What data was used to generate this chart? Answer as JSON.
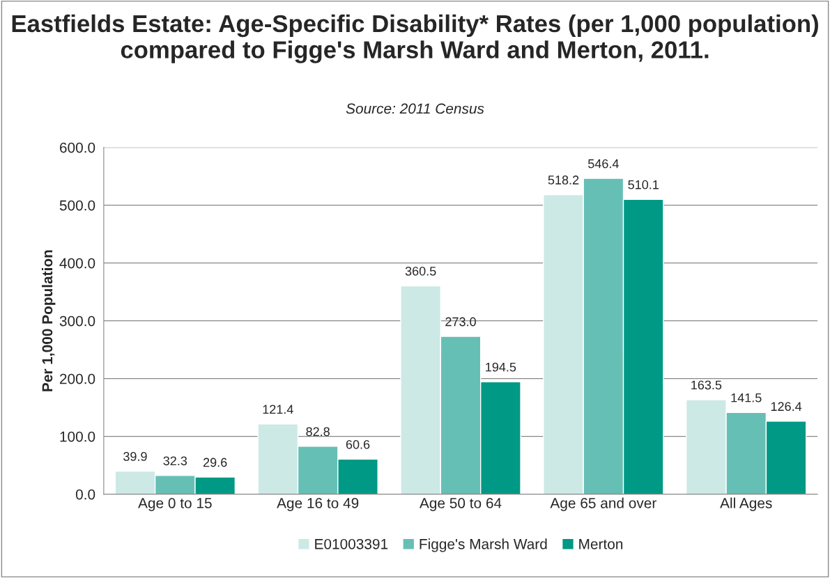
{
  "chart_data": {
    "type": "bar",
    "title": "Eastfields Estate: Age-Specific Disability* Rates (per 1,000 population) compared to Figge's Marsh Ward and Merton, 2011.",
    "subtitle": "Source: 2011 Census",
    "ylabel": "Per 1,000 Population",
    "categories": [
      "Age 0 to 15",
      "Age 16 to 49",
      "Age 50 to 64",
      "Age 65 and over",
      "All Ages"
    ],
    "series": [
      {
        "name": "E01003391",
        "color": "#cce9e6",
        "values": [
          39.9,
          121.4,
          360.5,
          518.2,
          163.5
        ],
        "value_labels": [
          "39.9",
          "121.4",
          "360.5",
          "518.2",
          "163.5"
        ]
      },
      {
        "name": "Figge's Marsh Ward",
        "color": "#66bfb5",
        "values": [
          32.3,
          82.8,
          273.0,
          546.4,
          141.5
        ],
        "value_labels": [
          "32.3",
          "82.8",
          "273.0",
          "546.4",
          "141.5"
        ]
      },
      {
        "name": "Merton",
        "color": "#009985",
        "values": [
          29.6,
          60.6,
          194.5,
          510.1,
          126.4
        ],
        "value_labels": [
          "29.6",
          "60.6",
          "194.5",
          "510.1",
          "126.4"
        ]
      }
    ],
    "ylim": [
      0,
      600
    ],
    "yticks": [
      {
        "value": 0,
        "label": "0.0"
      },
      {
        "value": 100,
        "label": "100.0"
      },
      {
        "value": 200,
        "label": "200.0"
      },
      {
        "value": 300,
        "label": "300.0"
      },
      {
        "value": 400,
        "label": "400.0"
      },
      {
        "value": 500,
        "label": "500.0"
      },
      {
        "value": 600,
        "label": "600.0"
      }
    ],
    "grid": "y",
    "legend": "bottom"
  }
}
